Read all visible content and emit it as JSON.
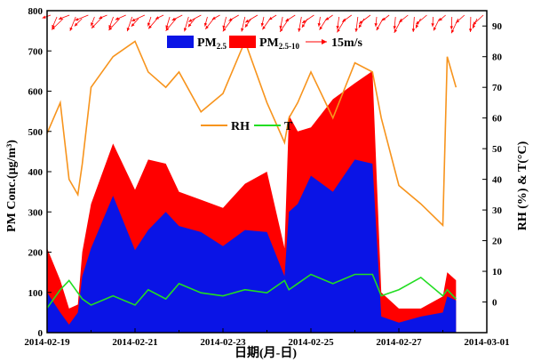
{
  "chart_data": {
    "type": "area",
    "title": "",
    "xlabel": "日期(月-日)",
    "ylabel_left": "PM Conc.(μg/m³)",
    "ylabel_right": "RH (%) & T(°C)",
    "xlim": [
      "2014-02-19",
      "2014-03-01"
    ],
    "ylim_left": [
      0,
      800
    ],
    "ylim_right": [
      -10,
      95
    ],
    "x_ticks": [
      "2014-02-19",
      "2014-02-21",
      "2014-02-23",
      "2014-02-25",
      "2014-02-27",
      "2014-03-01"
    ],
    "y_ticks_left": [
      0,
      100,
      200,
      300,
      400,
      500,
      600,
      700,
      800
    ],
    "y_ticks_right": [
      0,
      10,
      20,
      30,
      40,
      50,
      60,
      70,
      80,
      90
    ],
    "grid": false,
    "legend": {
      "pm25_main": "PM",
      "pm25_sub": "2.5",
      "pm2510_main": "PM",
      "pm2510_sub": "2.5-10",
      "wind": "15m/s",
      "rh": "RH",
      "t": "T"
    },
    "colors": {
      "pm25": "#0a14e6",
      "pm2510": "#ff0000",
      "rh": "#f7941d",
      "t": "#22dd22",
      "wind": "#ff0000"
    },
    "x_days": [
      0,
      0.3,
      0.5,
      0.7,
      0.8,
      1.0,
      1.5,
      2.0,
      2.3,
      2.7,
      3.0,
      3.5,
      4.0,
      4.5,
      5.0,
      5.4,
      5.5,
      5.7,
      6.0,
      6.5,
      7.0,
      7.4,
      7.6,
      8.0,
      8.5,
      9.0,
      9.1,
      9.3
    ],
    "series": [
      {
        "name": "PM2.5",
        "axis": "left",
        "values": [
          100,
          50,
          20,
          50,
          140,
          210,
          340,
          205,
          255,
          300,
          265,
          250,
          215,
          255,
          250,
          140,
          300,
          320,
          390,
          350,
          430,
          420,
          40,
          25,
          40,
          50,
          90,
          80
        ]
      },
      {
        "name": "PM2.5-10",
        "axis": "left",
        "values": [
          210,
          130,
          60,
          70,
          200,
          320,
          470,
          355,
          430,
          420,
          350,
          330,
          310,
          370,
          400,
          210,
          540,
          500,
          510,
          580,
          620,
          650,
          100,
          60,
          60,
          90,
          150,
          130
        ]
      },
      {
        "name": "RH",
        "axis": "right",
        "values": [
          55,
          65,
          40,
          35,
          45,
          70,
          80,
          85,
          75,
          70,
          75,
          62,
          68,
          85,
          65,
          52,
          60,
          65,
          75,
          60,
          78,
          75,
          60,
          38,
          32,
          25,
          80,
          70
        ]
      },
      {
        "name": "T",
        "axis": "right",
        "values": [
          -2,
          4,
          7,
          3,
          1,
          -1,
          2,
          -1,
          4,
          1,
          6,
          3,
          2,
          4,
          3,
          7,
          4,
          6,
          9,
          6,
          9,
          9,
          2,
          4,
          8,
          2,
          4,
          1
        ]
      }
    ]
  }
}
